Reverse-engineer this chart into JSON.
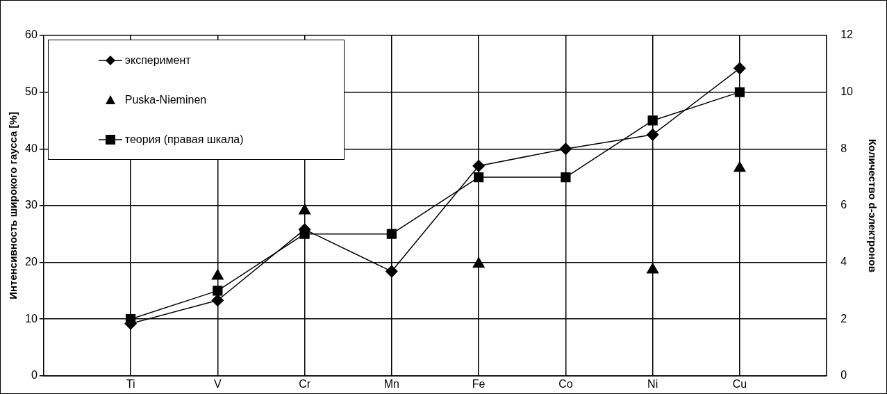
{
  "chart_data": {
    "type": "line",
    "ylabel": "Интенсивность широкого гаусса [%]",
    "y2label": "Количество d-электронов",
    "categories": [
      "Ti",
      "V",
      "Cr",
      "Mn",
      "Fe",
      "Co",
      "Ni",
      "Cu"
    ],
    "series": [
      {
        "name": "эксперимент",
        "type": "line",
        "marker": "diamond",
        "color": "#000000",
        "values": [
          9.2,
          13.3,
          25.8,
          18.4,
          37,
          40,
          42.5,
          54.2
        ]
      },
      {
        "name": "Puska-Nieminen",
        "type": "scatter",
        "marker": "triangle",
        "color": "#000000",
        "values": [
          null,
          17.6,
          29.1,
          null,
          19.7,
          null,
          18.7,
          36.6
        ]
      },
      {
        "name": "теория (правая шкала)",
        "type": "line",
        "marker": "square",
        "axis": "y2",
        "color": "#000000",
        "values": [
          2,
          3,
          5,
          5,
          7,
          7,
          9,
          10
        ]
      }
    ],
    "ylim": [
      0,
      60
    ],
    "yticks": [
      0,
      10,
      20,
      30,
      40,
      50,
      60
    ],
    "y2lim": [
      0,
      12
    ],
    "y2ticks": [
      0,
      2,
      4,
      6,
      8,
      10,
      12
    ],
    "grid": true,
    "legend": "top left",
    "line_style": "solid"
  }
}
